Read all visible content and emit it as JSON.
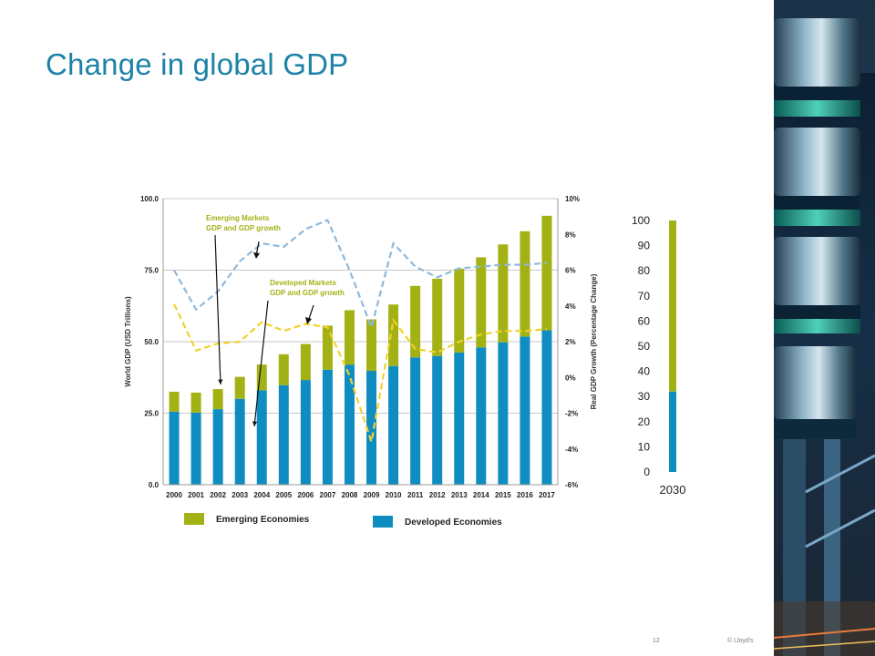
{
  "slide": {
    "title": "Change in global GDP",
    "page_number": "12",
    "copyright": "© Lloyd's"
  },
  "colors": {
    "title": "#1d82a6",
    "emerging": "#a2b215",
    "developed": "#0f8dc1",
    "emerging_growth_line": "#f2d22a",
    "developed_growth_line": "#8fb8db"
  },
  "chart_data": [
    {
      "type": "bar",
      "stacked": true,
      "categories": [
        "2000",
        "2001",
        "2002",
        "2003",
        "2004",
        "2005",
        "2006",
        "2007",
        "2008",
        "2009",
        "2010",
        "2011",
        "2012",
        "2013",
        "2014",
        "2015",
        "2016",
        "2017"
      ],
      "series": [
        {
          "name": "Developed Economies",
          "color": "#0f8dc1",
          "values": [
            25.5,
            25.2,
            26.4,
            30.0,
            33.0,
            34.8,
            36.6,
            40.2,
            42.0,
            39.8,
            41.5,
            44.5,
            45.0,
            46.2,
            48.0,
            49.8,
            51.8,
            54.0
          ]
        },
        {
          "name": "Emerging Economies",
          "color": "#a2b215",
          "values": [
            7.0,
            7.0,
            7.0,
            7.7,
            9.0,
            10.8,
            12.6,
            15.4,
            19.0,
            18.0,
            21.5,
            25.0,
            27.0,
            29.3,
            31.5,
            34.2,
            36.8,
            40.0
          ]
        }
      ],
      "lines": [
        {
          "name": "Emerging Markets GDP and GDP growth",
          "axis": "right",
          "style": "dashed",
          "color": "#8fb8db",
          "values": [
            6.0,
            3.8,
            4.8,
            6.5,
            7.5,
            7.3,
            8.3,
            8.8,
            6.0,
            2.8,
            7.5,
            6.2,
            5.6,
            6.1,
            6.2,
            6.3,
            6.3,
            6.4
          ]
        },
        {
          "name": "Developed Markets GDP and GDP growth",
          "axis": "right",
          "style": "dashed",
          "color": "#f2d22a",
          "values": [
            4.1,
            1.5,
            1.9,
            2.0,
            3.1,
            2.6,
            3.0,
            2.8,
            0.1,
            -3.6,
            3.2,
            1.6,
            1.4,
            2.0,
            2.4,
            2.6,
            2.6,
            2.7
          ]
        }
      ],
      "ylabel": "World GDP (USD Trillions)",
      "y2label": "Real GDP Growth (Percentage Change)",
      "ylim": [
        0,
        100
      ],
      "y2lim": [
        -6,
        10
      ],
      "yticks": [
        "0.0",
        "25.0",
        "50.0",
        "75.0",
        "100.0"
      ],
      "y2ticks": [
        "-6%",
        "-4%",
        "-2%",
        "0%",
        "2%",
        "4%",
        "6%",
        "8%",
        "10%"
      ],
      "grid": true,
      "annotations": [
        {
          "lines": [
            "Emerging Markets",
            "GDP and GDP growth"
          ],
          "color": "#a2b215"
        },
        {
          "lines": [
            "Developed Markets",
            "GDP and GDP growth"
          ],
          "color": "#a2b215"
        }
      ],
      "legend": [
        "Emerging Economies",
        "Developed Economies"
      ],
      "legend_position": "bottom"
    },
    {
      "type": "bar",
      "stacked": true,
      "categories": [
        "2030"
      ],
      "series": [
        {
          "name": "Developed Economies",
          "color": "#0f8dc1",
          "values": [
            32
          ]
        },
        {
          "name": "Emerging Economies",
          "color": "#a2b215",
          "values": [
            68
          ]
        }
      ],
      "ylim": [
        0,
        100
      ],
      "yticks": [
        "0",
        "10",
        "20",
        "30",
        "40",
        "50",
        "60",
        "70",
        "80",
        "90",
        "100"
      ]
    }
  ]
}
